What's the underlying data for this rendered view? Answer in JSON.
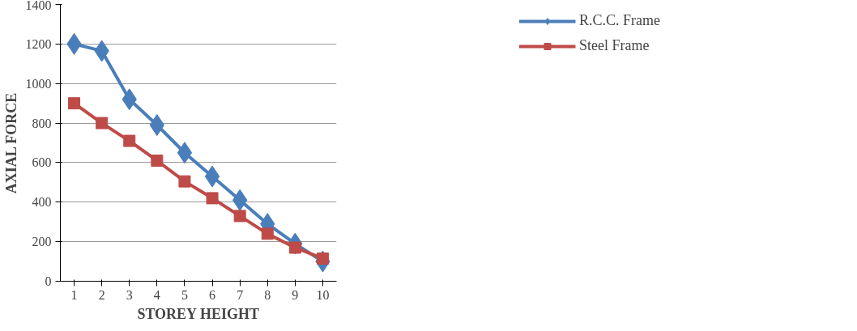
{
  "chart_data": {
    "type": "line",
    "xlabel": "STOREY HEIGHT",
    "ylabel": "AXIAL FORCE",
    "categories": [
      "1",
      "2",
      "3",
      "4",
      "5",
      "6",
      "7",
      "8",
      "9",
      "10"
    ],
    "series": [
      {
        "name": "R.C.C. Frame",
        "color": "#4a7ebb",
        "marker": "diamond",
        "values": [
          1200,
          1165,
          920,
          790,
          650,
          530,
          410,
          290,
          190,
          100
        ]
      },
      {
        "name": "Steel Frame",
        "color": "#be4b48",
        "marker": "square",
        "values": [
          900,
          800,
          710,
          610,
          505,
          420,
          330,
          240,
          170,
          115
        ]
      }
    ],
    "ylim": [
      0,
      1400
    ],
    "yticks": [
      0,
      200,
      400,
      600,
      800,
      1000,
      1200,
      1400
    ],
    "grid": "y",
    "legend": "top right"
  }
}
